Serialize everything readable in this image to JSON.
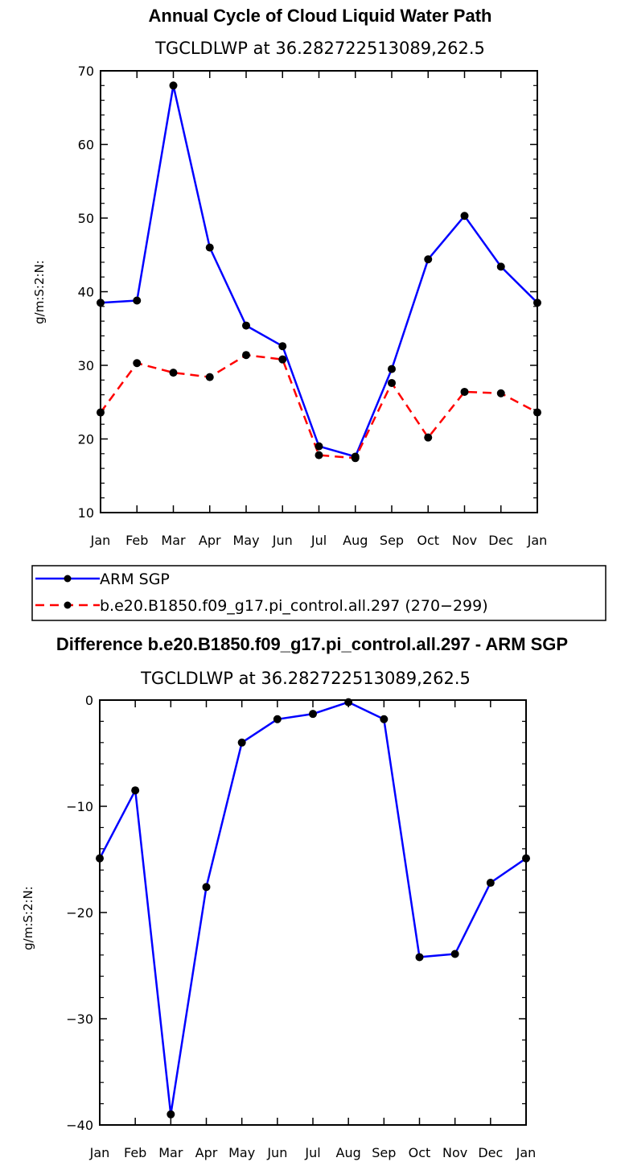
{
  "colors": {
    "series1": "#0000ff",
    "series2": "#ff0000",
    "marker": "#000000"
  },
  "legend": {
    "items": [
      {
        "label": "ARM SGP",
        "color": "#0000ff",
        "dash": "solid"
      },
      {
        "label": "b.e20.B1850.f09_g17.pi_control.all.297 (270−299)",
        "color": "#ff0000",
        "dash": "dashed"
      }
    ]
  },
  "chart_data": [
    {
      "type": "line",
      "title": "Annual Cycle of Cloud Liquid Water Path",
      "subtitle": "TGCLDLWP  at  36.282722513089,262.5",
      "xlabel": "",
      "ylabel": "g/m:S:2:N:",
      "categories": [
        "Jan",
        "Feb",
        "Mar",
        "Apr",
        "May",
        "Jun",
        "Jul",
        "Aug",
        "Sep",
        "Oct",
        "Nov",
        "Dec",
        "Jan"
      ],
      "ylim": [
        10,
        70
      ],
      "yticks": [
        10,
        20,
        30,
        40,
        50,
        60,
        70
      ],
      "ytick_labels": [
        "10",
        "20",
        "30",
        "40",
        "50",
        "60",
        "70"
      ],
      "series": [
        {
          "name": "ARM SGP",
          "color": "#0000ff",
          "dash": "solid",
          "values": [
            38.5,
            38.8,
            68.0,
            46.0,
            35.4,
            32.6,
            19.0,
            17.6,
            29.5,
            44.4,
            50.3,
            43.4,
            38.5
          ]
        },
        {
          "name": "b.e20.B1850.f09_g17.pi_control.all.297 (270−299)",
          "color": "#ff0000",
          "dash": "dashed",
          "values": [
            23.6,
            30.3,
            29.0,
            28.4,
            31.4,
            30.8,
            17.8,
            17.4,
            27.6,
            20.2,
            26.4,
            26.2,
            23.6
          ]
        }
      ]
    },
    {
      "type": "line",
      "title": "Difference b.e20.B1850.f09_g17.pi_control.all.297 - ARM SGP",
      "subtitle": "TGCLDLWP  at  36.282722513089,262.5",
      "xlabel": "",
      "ylabel": "g/m:S:2:N:",
      "categories": [
        "Jan",
        "Feb",
        "Mar",
        "Apr",
        "May",
        "Jun",
        "Jul",
        "Aug",
        "Sep",
        "Oct",
        "Nov",
        "Dec",
        "Jan"
      ],
      "ylim": [
        -40,
        0
      ],
      "yticks": [
        -40,
        -30,
        -20,
        -10,
        0
      ],
      "ytick_labels": [
        "−40",
        "−30",
        "−20",
        "−10",
        "0"
      ],
      "series": [
        {
          "name": "Difference",
          "color": "#0000ff",
          "dash": "solid",
          "values": [
            -14.9,
            -8.5,
            -39.0,
            -17.6,
            -4.0,
            -1.8,
            -1.3,
            -0.2,
            -1.8,
            -24.2,
            -23.9,
            -17.2,
            -14.9
          ]
        }
      ]
    }
  ]
}
